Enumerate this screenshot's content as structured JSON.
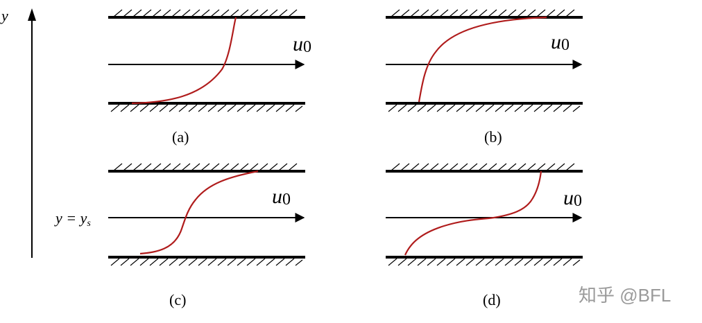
{
  "axis": {
    "label": "y"
  },
  "ys_label": "y = y_s",
  "panels": [
    {
      "id": "a",
      "caption": "(a)",
      "velocity_label": "u0"
    },
    {
      "id": "b",
      "caption": "(b)",
      "velocity_label": "u0"
    },
    {
      "id": "c",
      "caption": "(c)",
      "velocity_label": "u0"
    },
    {
      "id": "d",
      "caption": "(d)",
      "velocity_label": "u0"
    }
  ],
  "watermark": "知乎 @BFL",
  "colors": {
    "line": "#000000",
    "profile": "#b01c1c",
    "watermark": "#9a9a9a"
  }
}
